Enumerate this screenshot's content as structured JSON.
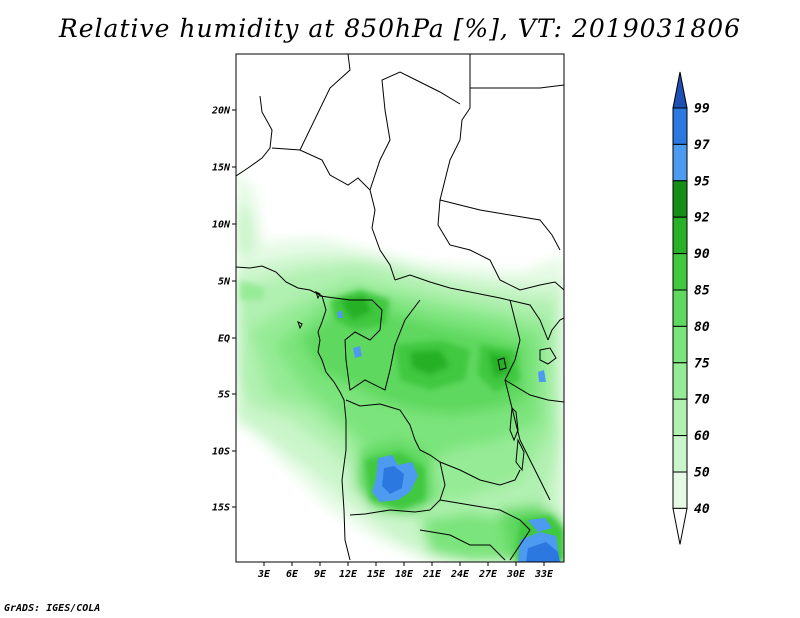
{
  "title": "Relative humidity at 850hPa [%], VT: 2019031806",
  "credit": "GrADS: IGES/COLA",
  "map": {
    "lat_ticks": [
      "20N",
      "15N",
      "10N",
      "5N",
      "EQ",
      "5S",
      "10S",
      "15S"
    ],
    "lon_ticks": [
      "3E",
      "6E",
      "9E",
      "12E",
      "15E",
      "18E",
      "21E",
      "24E",
      "27E",
      "30E",
      "33E"
    ]
  },
  "colorbar": {
    "levels": [
      "40",
      "50",
      "60",
      "70",
      "75",
      "80",
      "85",
      "90",
      "92",
      "95",
      "97",
      "99"
    ],
    "colors": {
      "below_40": "#ffffff",
      "40-50": "#e5fae5",
      "50-60": "#caf5ca",
      "60-70": "#b0f0b0",
      "70-75": "#96eb96",
      "75-80": "#7ce47c",
      "80-85": "#5ed85e",
      "85-90": "#40c840",
      "90-92": "#28b028",
      "92-95": "#168f16",
      "95-97": "#4d9bf0",
      "97-99": "#2a78e0",
      "above_99": "#1e50b4"
    }
  }
}
